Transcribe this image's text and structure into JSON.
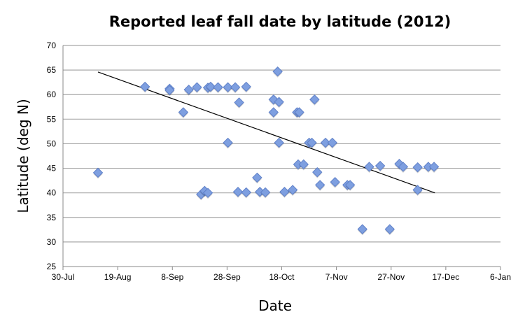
{
  "chart_data": {
    "type": "scatter",
    "title": "Reported leaf fall date by latitude (2012)",
    "xlabel": "Date",
    "ylabel": "Latitude (deg N)",
    "x_units": "days since 30-Jul",
    "xlim": [
      0,
      160
    ],
    "ylim": [
      25,
      70
    ],
    "x_ticks": [
      0,
      20,
      40,
      60,
      80,
      100,
      120,
      140,
      160
    ],
    "x_tick_labels": [
      "30-Jul",
      "19-Aug",
      "8-Sep",
      "28-Sep",
      "18-Oct",
      "7-Nov",
      "27-Nov",
      "17-Dec",
      "6-Jan"
    ],
    "y_ticks": [
      25,
      30,
      35,
      40,
      45,
      50,
      55,
      60,
      65,
      70
    ],
    "grid": true,
    "marker_color": "#7e9fe0",
    "series": [
      {
        "name": "Reports",
        "points": [
          [
            12.8,
            44.1
          ],
          [
            30,
            61.6
          ],
          [
            39,
            61.2
          ],
          [
            39,
            60.9
          ],
          [
            44,
            56.4
          ],
          [
            46,
            61
          ],
          [
            49,
            61.5
          ],
          [
            50.5,
            39.7
          ],
          [
            51.8,
            40.4
          ],
          [
            53,
            40
          ],
          [
            53,
            61.4
          ],
          [
            54,
            61.6
          ],
          [
            56.7,
            61.5
          ],
          [
            60.3,
            61.5
          ],
          [
            60.3,
            50.2
          ],
          [
            63,
            61.5
          ],
          [
            64,
            40.2
          ],
          [
            64.4,
            58.4
          ],
          [
            67,
            61.6
          ],
          [
            67,
            40.1
          ],
          [
            71,
            43.1
          ],
          [
            72,
            40.2
          ],
          [
            74,
            40.1
          ],
          [
            77,
            56.4
          ],
          [
            77,
            59
          ],
          [
            78.5,
            64.7
          ],
          [
            79,
            58.5
          ],
          [
            79,
            50.2
          ],
          [
            81,
            40.2
          ],
          [
            84,
            40.6
          ],
          [
            85.6,
            56.4
          ],
          [
            86.4,
            56.4
          ],
          [
            86,
            45.8
          ],
          [
            88,
            45.8
          ],
          [
            90,
            50.2
          ],
          [
            91,
            50.2
          ],
          [
            92,
            59
          ],
          [
            93,
            44.2
          ],
          [
            94,
            41.6
          ],
          [
            96,
            50.2
          ],
          [
            98.5,
            50.2
          ],
          [
            99.5,
            42.2
          ],
          [
            104,
            41.6
          ],
          [
            105,
            41.6
          ],
          [
            109.5,
            32.6
          ],
          [
            112,
            45.3
          ],
          [
            116,
            45.5
          ],
          [
            119.5,
            32.6
          ],
          [
            123,
            45.9
          ],
          [
            124.4,
            45.3
          ],
          [
            129.7,
            40.6
          ],
          [
            129.7,
            45.2
          ],
          [
            133.6,
            45.3
          ],
          [
            135.7,
            45.3
          ]
        ]
      }
    ],
    "trendline": {
      "x": [
        12.8,
        136
      ],
      "y": [
        64.6,
        40.0
      ]
    }
  }
}
